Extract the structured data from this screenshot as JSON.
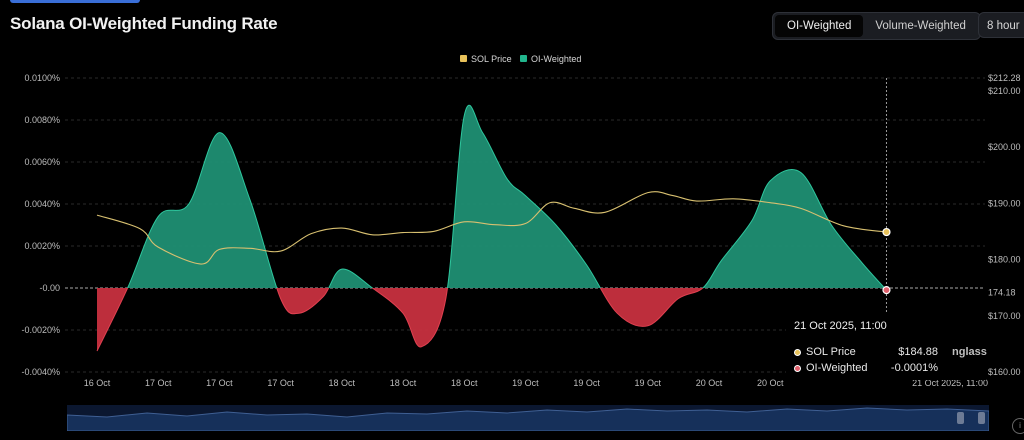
{
  "header": {
    "title": "Solana OI-Weighted Funding Rate",
    "toggle": {
      "active": "OI-Weighted",
      "options": [
        "OI-Weighted",
        "Volume-Weighted"
      ]
    },
    "interval": "8 hour"
  },
  "colors": {
    "positive_fill": "#1f8f73",
    "negative_fill": "#c7303f",
    "price_line": "#d8c070",
    "background": "#000000",
    "grid": "#2a2a2a"
  },
  "chart_data": {
    "type": "area",
    "legend": [
      {
        "name": "SOL Price",
        "color": "#e8c25a"
      },
      {
        "name": "OI-Weighted",
        "color": "#22b58d"
      }
    ],
    "legend_position": "top-center",
    "x_tick_labels": [
      "16 Oct",
      "17 Oct",
      "17 Oct",
      "17 Oct",
      "18 Oct",
      "18 Oct",
      "18 Oct",
      "19 Oct",
      "19 Oct",
      "19 Oct",
      "20 Oct",
      "20 Oct",
      "21 Oct 2025, 11:00"
    ],
    "y_left": {
      "ticks": [
        "0.0100%",
        "0.0080%",
        "0.0060%",
        "0.0040%",
        "0.0020%",
        "-0.00",
        "-0.0020%",
        "-0.0040%"
      ],
      "range": [
        -0.004,
        0.01
      ]
    },
    "y_right": {
      "ticks": [
        "$212.28",
        "$210.00",
        "$200.00",
        "$190.00",
        "$180.00",
        "174.18",
        "$170.00",
        "$160.00"
      ],
      "range": [
        160,
        212.28
      ]
    },
    "series": [
      {
        "name": "OI-Weighted",
        "x": [
          0,
          0.5,
          1,
          1.5,
          2,
          2.5,
          3,
          3.3,
          3.7,
          4,
          4.5,
          5,
          5.3,
          5.7,
          6,
          6.3,
          6.7,
          7,
          7.5,
          8,
          8.5,
          9,
          9.5,
          9.9,
          10.2,
          10.7,
          11,
          11.5,
          12,
          12.5,
          12.9
        ],
        "values": [
          -0.003,
          0.0,
          0.0034,
          0.004,
          0.0074,
          0.0042,
          -0.0005,
          -0.0012,
          -0.0004,
          0.0009,
          0.0,
          -0.0012,
          -0.0028,
          -0.0005,
          0.0082,
          0.0074,
          0.0052,
          0.0044,
          0.003,
          0.0011,
          -0.0012,
          -0.0018,
          -0.0005,
          0.0,
          0.0013,
          0.0032,
          0.0051,
          0.0055,
          0.003,
          0.0012,
          -0.0001
        ]
      },
      {
        "name": "SOL Price",
        "x": [
          0,
          0.7,
          1,
          1.7,
          2,
          2.5,
          3,
          3.5,
          4,
          4.5,
          5,
          5.5,
          6,
          6.5,
          7,
          7.4,
          7.8,
          8.3,
          9,
          9.4,
          9.8,
          10.4,
          11,
          11.5,
          12.2,
          12.9
        ],
        "values": [
          187.9,
          185.5,
          182.2,
          179.2,
          181.8,
          182.0,
          181.5,
          184.6,
          185.6,
          184.4,
          184.8,
          185.0,
          186.7,
          186.2,
          186.4,
          190.1,
          189.1,
          188.4,
          191.9,
          191.4,
          190.4,
          190.8,
          190.1,
          189.1,
          186.0,
          184.88
        ]
      }
    ]
  },
  "tooltip": {
    "title": "21 Oct 2025, 11:00",
    "rows": [
      {
        "name": "SOL Price",
        "value": "$184.88",
        "color": "#e8c25a"
      },
      {
        "name": "OI-Weighted",
        "value": "-0.0001%",
        "color": "#e0606c"
      }
    ]
  },
  "watermark": "nglass"
}
